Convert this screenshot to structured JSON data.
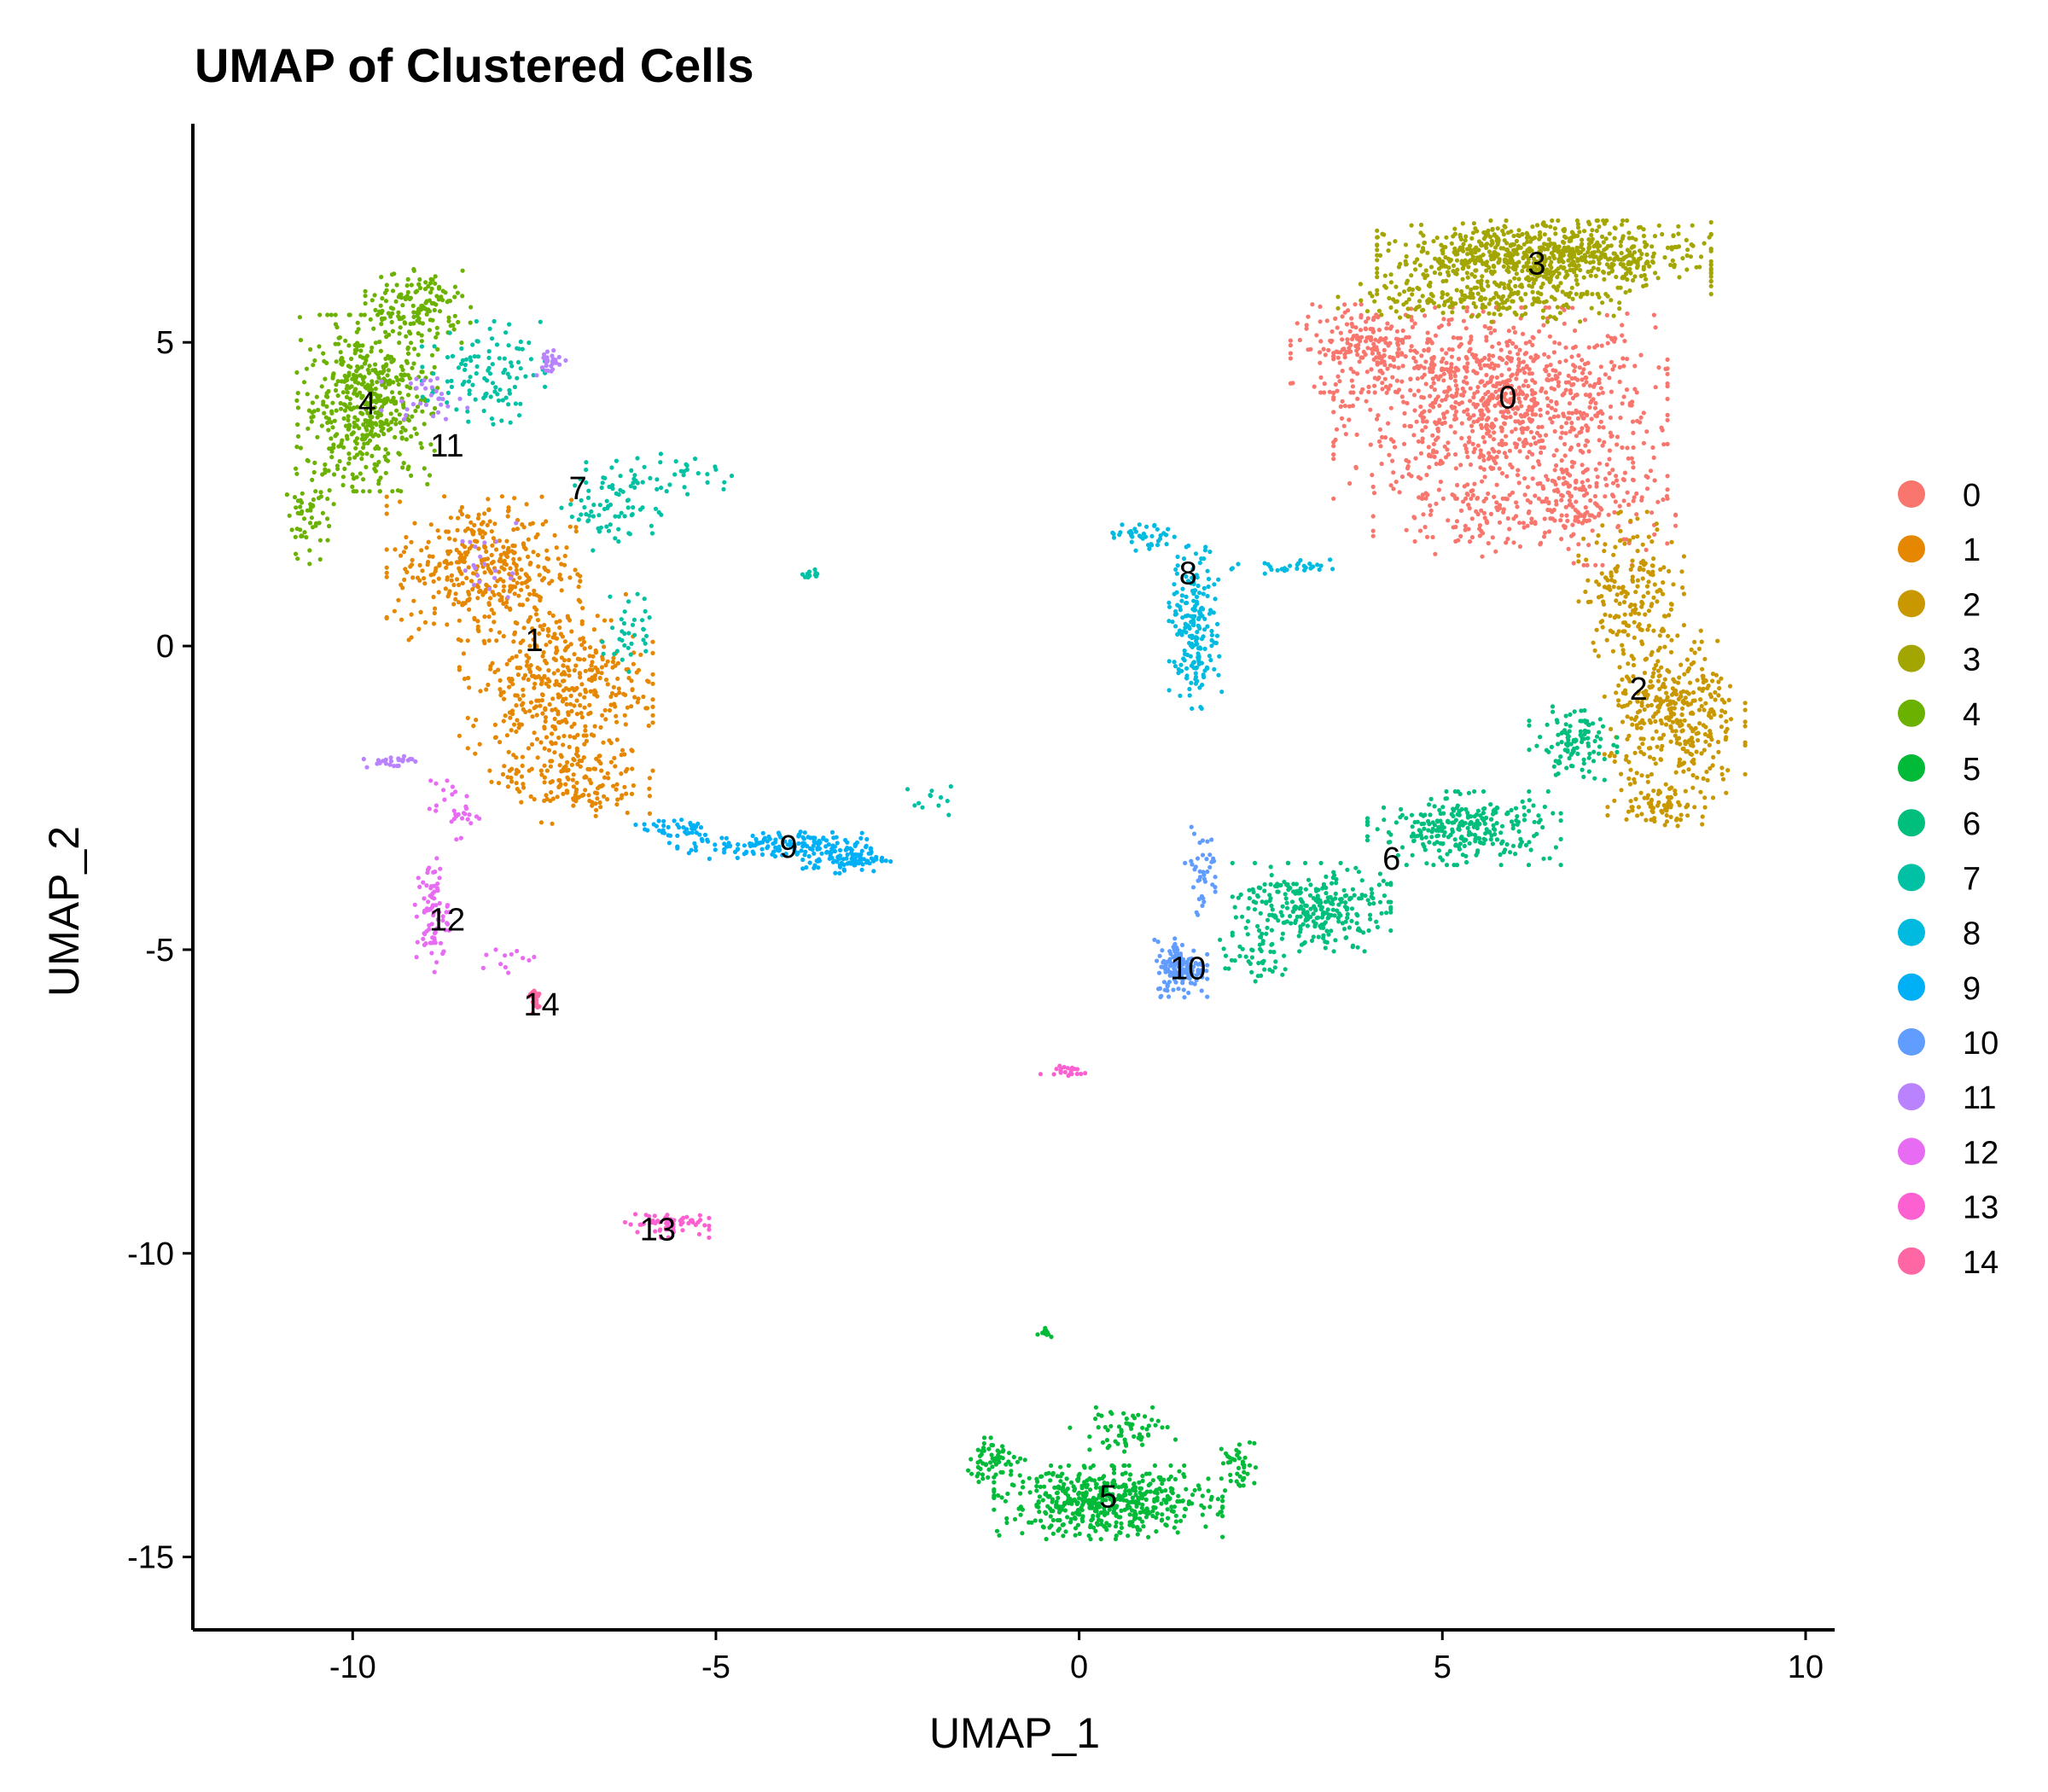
{
  "chart_data": {
    "type": "scatter",
    "title": "UMAP of Clustered Cells",
    "xlabel": "UMAP_1",
    "ylabel": "UMAP_2",
    "xlim": [
      -12.2,
      10.4
    ],
    "ylim": [
      -16.2,
      8.6
    ],
    "xticks": [
      -10,
      -5,
      0,
      5,
      10
    ],
    "yticks": [
      -15,
      -10,
      -5,
      0,
      5
    ],
    "grid": false,
    "legend": "right",
    "clusters": [
      {
        "name": "0",
        "color": "#F8766D",
        "label_x": 5.9,
        "label_y": 4.1,
        "blobs": [
          [
            5.8,
            4.0,
            1.9,
            1.3,
            950
          ],
          [
            4.0,
            4.9,
            0.9,
            0.6,
            200
          ],
          [
            7.0,
            2.3,
            1.0,
            0.8,
            170
          ],
          [
            5.5,
            2.2,
            1.2,
            0.6,
            120
          ]
        ]
      },
      {
        "name": "1",
        "color": "#E58700",
        "label_x": -7.5,
        "label_y": 0.1,
        "blobs": [
          [
            -8.2,
            1.3,
            1.1,
            1.0,
            380
          ],
          [
            -7.2,
            -0.6,
            1.1,
            1.2,
            420
          ],
          [
            -7.0,
            -2.2,
            0.9,
            0.6,
            160
          ]
        ]
      },
      {
        "name": "2",
        "color": "#C99800",
        "label_x": 7.7,
        "label_y": -0.7,
        "blobs": [
          [
            7.6,
            1.0,
            0.6,
            1.0,
            180
          ],
          [
            8.2,
            -1.2,
            0.8,
            1.2,
            380
          ],
          [
            8.0,
            -2.6,
            0.6,
            0.3,
            70
          ]
        ]
      },
      {
        "name": "3",
        "color": "#A3A500",
        "label_x": 6.3,
        "label_y": 6.3,
        "blobs": [
          [
            6.4,
            6.4,
            1.9,
            0.5,
            780
          ],
          [
            5.5,
            5.7,
            1.6,
            0.3,
            180
          ]
        ]
      },
      {
        "name": "4",
        "color": "#6BB100",
        "label_x": -9.8,
        "label_y": 4.0,
        "blobs": [
          [
            -9.8,
            4.0,
            0.8,
            1.2,
            520
          ],
          [
            -9.1,
            5.6,
            0.6,
            0.5,
            140
          ],
          [
            -10.6,
            2.2,
            0.3,
            0.7,
            60
          ]
        ]
      },
      {
        "name": "5",
        "color": "#00BA38",
        "label_x": 0.4,
        "label_y": -14.0,
        "blobs": [
          [
            0.4,
            -14.1,
            1.3,
            0.5,
            520
          ],
          [
            -1.2,
            -13.4,
            0.4,
            0.3,
            60
          ],
          [
            2.2,
            -13.5,
            0.2,
            0.4,
            40
          ],
          [
            0.6,
            -12.9,
            0.6,
            0.3,
            60
          ],
          [
            -0.45,
            -11.3,
            0.1,
            0.1,
            10
          ]
        ]
      },
      {
        "name": "6",
        "color": "#00BF7D",
        "label_x": 4.3,
        "label_y": -3.5,
        "blobs": [
          [
            3.2,
            -4.3,
            0.9,
            0.6,
            300
          ],
          [
            5.3,
            -3.0,
            1.1,
            0.5,
            280
          ],
          [
            6.8,
            -1.6,
            0.5,
            0.5,
            110
          ],
          [
            2.4,
            -5.2,
            0.4,
            0.3,
            40
          ]
        ]
      },
      {
        "name": "7",
        "color": "#00C1A3",
        "label_x": -6.9,
        "label_y": 2.6,
        "blobs": [
          [
            -8.2,
            4.5,
            0.7,
            0.7,
            110
          ],
          [
            -6.4,
            2.3,
            0.6,
            0.6,
            70
          ],
          [
            -6.2,
            0.3,
            0.3,
            0.6,
            35
          ],
          [
            -5.7,
            2.8,
            0.9,
            0.3,
            40
          ],
          [
            -3.7,
            1.2,
            0.1,
            0.1,
            12
          ],
          [
            -2.0,
            -2.5,
            0.3,
            0.3,
            12
          ]
        ]
      },
      {
        "name": "8",
        "color": "#00BAE0",
        "label_x": 1.5,
        "label_y": 1.2,
        "blobs": [
          [
            1.6,
            0.3,
            0.3,
            1.1,
            200
          ],
          [
            0.9,
            1.8,
            0.5,
            0.2,
            40
          ],
          [
            2.9,
            1.3,
            0.7,
            0.1,
            30
          ]
        ]
      },
      {
        "name": "9",
        "color": "#00B0F6",
        "label_x": -4.0,
        "label_y": -3.3,
        "blobs": [
          [
            -4.2,
            -3.3,
            1.1,
            0.2,
            150
          ],
          [
            -3.2,
            -3.5,
            0.5,
            0.2,
            90
          ],
          [
            -5.5,
            -3.0,
            0.5,
            0.2,
            40
          ]
        ]
      },
      {
        "name": "10",
        "color": "#619CFF",
        "label_x": 1.5,
        "label_y": -5.3,
        "blobs": [
          [
            1.4,
            -5.3,
            0.3,
            0.4,
            150
          ],
          [
            1.7,
            -3.7,
            0.2,
            0.6,
            40
          ]
        ]
      },
      {
        "name": "11",
        "color": "#B983FF",
        "label_x": -8.7,
        "label_y": 3.3,
        "blobs": [
          [
            -7.3,
            4.7,
            0.2,
            0.2,
            30
          ],
          [
            -9.5,
            -1.9,
            0.3,
            0.1,
            25
          ],
          [
            -9.0,
            4.1,
            0.5,
            0.3,
            30
          ],
          [
            -8.1,
            1.3,
            0.4,
            0.6,
            20
          ]
        ]
      },
      {
        "name": "12",
        "color": "#E76BF3",
        "label_x": -8.7,
        "label_y": -4.5,
        "blobs": [
          [
            -8.9,
            -4.4,
            0.2,
            0.8,
            80
          ],
          [
            -8.6,
            -2.7,
            0.3,
            0.4,
            30
          ],
          [
            -7.8,
            -5.2,
            0.4,
            0.2,
            12
          ]
        ]
      },
      {
        "name": "13",
        "color": "#FD61D1",
        "label_x": -5.8,
        "label_y": -9.6,
        "blobs": [
          [
            -5.7,
            -9.5,
            0.5,
            0.2,
            60
          ],
          [
            -0.2,
            -7.0,
            0.3,
            0.1,
            20
          ]
        ]
      },
      {
        "name": "14",
        "color": "#FF67A4",
        "label_x": -7.4,
        "label_y": -5.9,
        "blobs": [
          [
            -7.5,
            -5.8,
            0.1,
            0.2,
            20
          ]
        ]
      }
    ]
  }
}
